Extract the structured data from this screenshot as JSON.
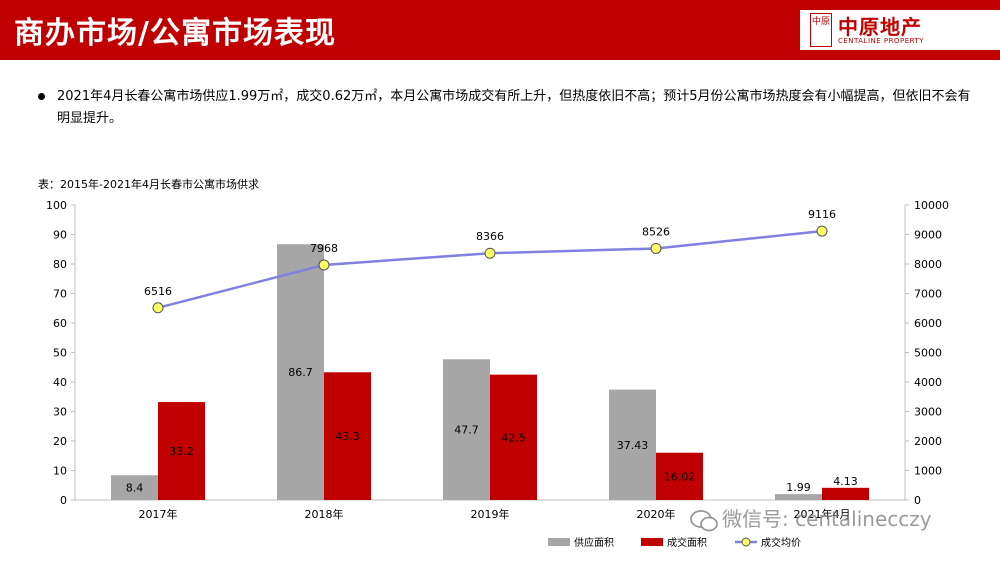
{
  "header": {
    "title": "商办市场/公寓市场表现"
  },
  "logo": {
    "seal_text": "中原",
    "name_cn": "中原地产",
    "name_en": "CENTALINE PROPERTY"
  },
  "bullet": "2021年4月长春公寓市场供应1.99万㎡，成交0.62万㎡，本月公寓市场成交有所上升，但热度依旧不高；预计5月份公寓市场热度会有小幅提高，但依旧不会有明显提升。",
  "table_title": "表：2015年-2021年4月长春市公寓市场供求",
  "watermark": "微信号: centalinecczy",
  "colors": {
    "header": "#c00000",
    "supply": "#a6a6a6",
    "deal": "#c00000",
    "price_line": "#8080e0",
    "marker": "#ffff66"
  },
  "chart_data": {
    "type": "bar",
    "title": "",
    "categories": [
      "2017年",
      "2018年",
      "2019年",
      "2020年",
      "2021年4月"
    ],
    "series": [
      {
        "name": "供应面积",
        "axis": "left",
        "kind": "bar",
        "values": [
          8.4,
          86.7,
          47.7,
          37.43,
          1.99
        ],
        "labels": [
          "8.4",
          "86.7",
          "47.7",
          "37.43",
          "1.99"
        ]
      },
      {
        "name": "成交面积",
        "axis": "left",
        "kind": "bar",
        "values": [
          33.2,
          43.3,
          42.5,
          16.02,
          4.13
        ],
        "labels": [
          "33.2",
          "43.3",
          "42.5",
          "16.02",
          "4.13"
        ]
      },
      {
        "name": "成交均价",
        "axis": "right",
        "kind": "line",
        "values": [
          6516,
          7968,
          8366,
          8526,
          9116
        ],
        "labels": [
          "6516",
          "7968",
          "8366",
          "8526",
          "9116"
        ]
      }
    ],
    "y_left": {
      "min": 0,
      "max": 100,
      "ticks": [
        "0",
        "10",
        "20",
        "30",
        "40",
        "50",
        "60",
        "70",
        "80",
        "90",
        "100"
      ]
    },
    "y_right": {
      "min": 0,
      "max": 10000,
      "ticks": [
        "0",
        "1000",
        "2000",
        "3000",
        "4000",
        "5000",
        "6000",
        "7000",
        "8000",
        "9000",
        "10000"
      ]
    },
    "grid": false,
    "legend": "bottom"
  }
}
